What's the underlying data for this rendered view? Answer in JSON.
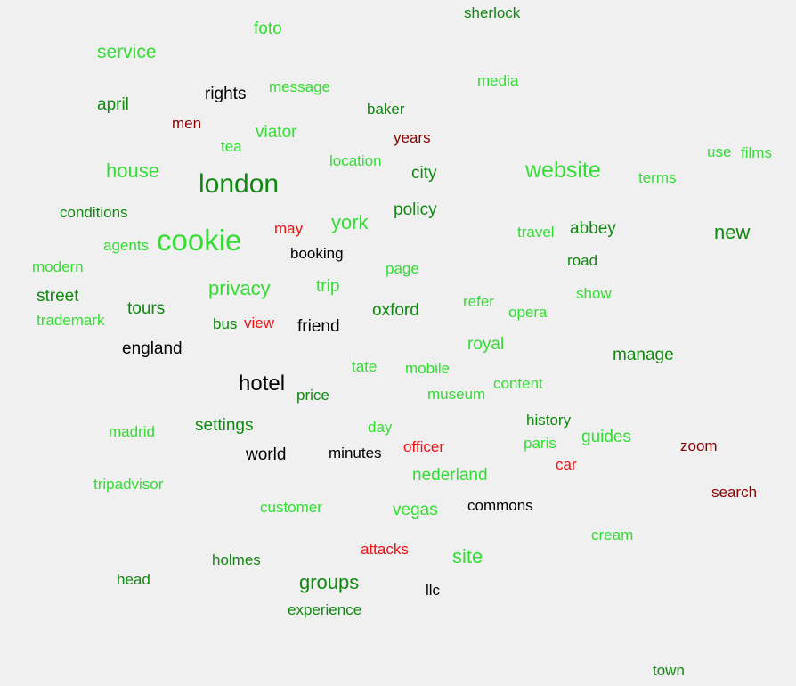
{
  "palette": {
    "light_green": "#33dd33",
    "dark_green": "#118811",
    "black": "#000000",
    "red": "#ee1111",
    "dark_red": "#880000"
  },
  "words": [
    {
      "id": "sherlock",
      "text": "sherlock",
      "color": "dark_green"
    },
    {
      "id": "foto",
      "text": "foto",
      "color": "light_green"
    },
    {
      "id": "service",
      "text": "service",
      "color": "light_green"
    },
    {
      "id": "media",
      "text": "media",
      "color": "light_green"
    },
    {
      "id": "rights",
      "text": "rights",
      "color": "black"
    },
    {
      "id": "message",
      "text": "message",
      "color": "light_green"
    },
    {
      "id": "april",
      "text": "april",
      "color": "dark_green"
    },
    {
      "id": "baker",
      "text": "baker",
      "color": "dark_green"
    },
    {
      "id": "men",
      "text": "men",
      "color": "dark_red"
    },
    {
      "id": "viator",
      "text": "viator",
      "color": "light_green"
    },
    {
      "id": "years",
      "text": "years",
      "color": "dark_red"
    },
    {
      "id": "tea",
      "text": "tea",
      "color": "light_green"
    },
    {
      "id": "use",
      "text": "use",
      "color": "light_green"
    },
    {
      "id": "films",
      "text": "films",
      "color": "light_green"
    },
    {
      "id": "location",
      "text": "location",
      "color": "light_green"
    },
    {
      "id": "house",
      "text": "house",
      "color": "light_green"
    },
    {
      "id": "city",
      "text": "city",
      "color": "dark_green"
    },
    {
      "id": "website",
      "text": "website",
      "color": "light_green"
    },
    {
      "id": "terms",
      "text": "terms",
      "color": "light_green"
    },
    {
      "id": "london",
      "text": "london",
      "color": "dark_green"
    },
    {
      "id": "conditions",
      "text": "conditions",
      "color": "dark_green"
    },
    {
      "id": "policy",
      "text": "policy",
      "color": "dark_green"
    },
    {
      "id": "york",
      "text": "york",
      "color": "light_green"
    },
    {
      "id": "may",
      "text": "may",
      "color": "red"
    },
    {
      "id": "abbey",
      "text": "abbey",
      "color": "dark_green"
    },
    {
      "id": "travel",
      "text": "travel",
      "color": "light_green"
    },
    {
      "id": "new",
      "text": "new",
      "color": "dark_green"
    },
    {
      "id": "cookie",
      "text": "cookie",
      "color": "light_green"
    },
    {
      "id": "agents",
      "text": "agents",
      "color": "light_green"
    },
    {
      "id": "booking",
      "text": "booking",
      "color": "black"
    },
    {
      "id": "road",
      "text": "road",
      "color": "dark_green"
    },
    {
      "id": "modern",
      "text": "modern",
      "color": "light_green"
    },
    {
      "id": "page",
      "text": "page",
      "color": "light_green"
    },
    {
      "id": "trip",
      "text": "trip",
      "color": "light_green"
    },
    {
      "id": "privacy",
      "text": "privacy",
      "color": "light_green"
    },
    {
      "id": "show",
      "text": "show",
      "color": "light_green"
    },
    {
      "id": "street",
      "text": "street",
      "color": "dark_green"
    },
    {
      "id": "refer",
      "text": "refer",
      "color": "light_green"
    },
    {
      "id": "tours",
      "text": "tours",
      "color": "dark_green"
    },
    {
      "id": "oxford",
      "text": "oxford",
      "color": "dark_green"
    },
    {
      "id": "opera",
      "text": "opera",
      "color": "light_green"
    },
    {
      "id": "trademark",
      "text": "trademark",
      "color": "light_green"
    },
    {
      "id": "bus",
      "text": "bus",
      "color": "dark_green"
    },
    {
      "id": "view",
      "text": "view",
      "color": "red"
    },
    {
      "id": "friend",
      "text": "friend",
      "color": "black"
    },
    {
      "id": "royal",
      "text": "royal",
      "color": "light_green"
    },
    {
      "id": "england",
      "text": "england",
      "color": "black"
    },
    {
      "id": "manage",
      "text": "manage",
      "color": "dark_green"
    },
    {
      "id": "tate",
      "text": "tate",
      "color": "light_green"
    },
    {
      "id": "mobile",
      "text": "mobile",
      "color": "light_green"
    },
    {
      "id": "hotel",
      "text": "hotel",
      "color": "black"
    },
    {
      "id": "content",
      "text": "content",
      "color": "light_green"
    },
    {
      "id": "museum",
      "text": "museum",
      "color": "light_green"
    },
    {
      "id": "price",
      "text": "price",
      "color": "dark_green"
    },
    {
      "id": "history",
      "text": "history",
      "color": "dark_green"
    },
    {
      "id": "settings",
      "text": "settings",
      "color": "dark_green"
    },
    {
      "id": "day",
      "text": "day",
      "color": "light_green"
    },
    {
      "id": "madrid",
      "text": "madrid",
      "color": "light_green"
    },
    {
      "id": "guides",
      "text": "guides",
      "color": "light_green"
    },
    {
      "id": "paris",
      "text": "paris",
      "color": "light_green"
    },
    {
      "id": "officer",
      "text": "officer",
      "color": "red"
    },
    {
      "id": "zoom",
      "text": "zoom",
      "color": "dark_red"
    },
    {
      "id": "world",
      "text": "world",
      "color": "black"
    },
    {
      "id": "minutes",
      "text": "minutes",
      "color": "black"
    },
    {
      "id": "car",
      "text": "car",
      "color": "red"
    },
    {
      "id": "nederland",
      "text": "nederland",
      "color": "light_green"
    },
    {
      "id": "tripadvisor",
      "text": "tripadvisor",
      "color": "light_green"
    },
    {
      "id": "search",
      "text": "search",
      "color": "dark_red"
    },
    {
      "id": "customer",
      "text": "customer",
      "color": "light_green"
    },
    {
      "id": "vegas",
      "text": "vegas",
      "color": "light_green"
    },
    {
      "id": "commons",
      "text": "commons",
      "color": "black"
    },
    {
      "id": "cream",
      "text": "cream",
      "color": "light_green"
    },
    {
      "id": "attacks",
      "text": "attacks",
      "color": "red"
    },
    {
      "id": "site",
      "text": "site",
      "color": "light_green"
    },
    {
      "id": "holmes",
      "text": "holmes",
      "color": "dark_green"
    },
    {
      "id": "head",
      "text": "head",
      "color": "dark_green"
    },
    {
      "id": "groups",
      "text": "groups",
      "color": "dark_green"
    },
    {
      "id": "llc",
      "text": "llc",
      "color": "black"
    },
    {
      "id": "experience",
      "text": "experience",
      "color": "dark_green"
    },
    {
      "id": "town",
      "text": "town",
      "color": "dark_green"
    }
  ]
}
